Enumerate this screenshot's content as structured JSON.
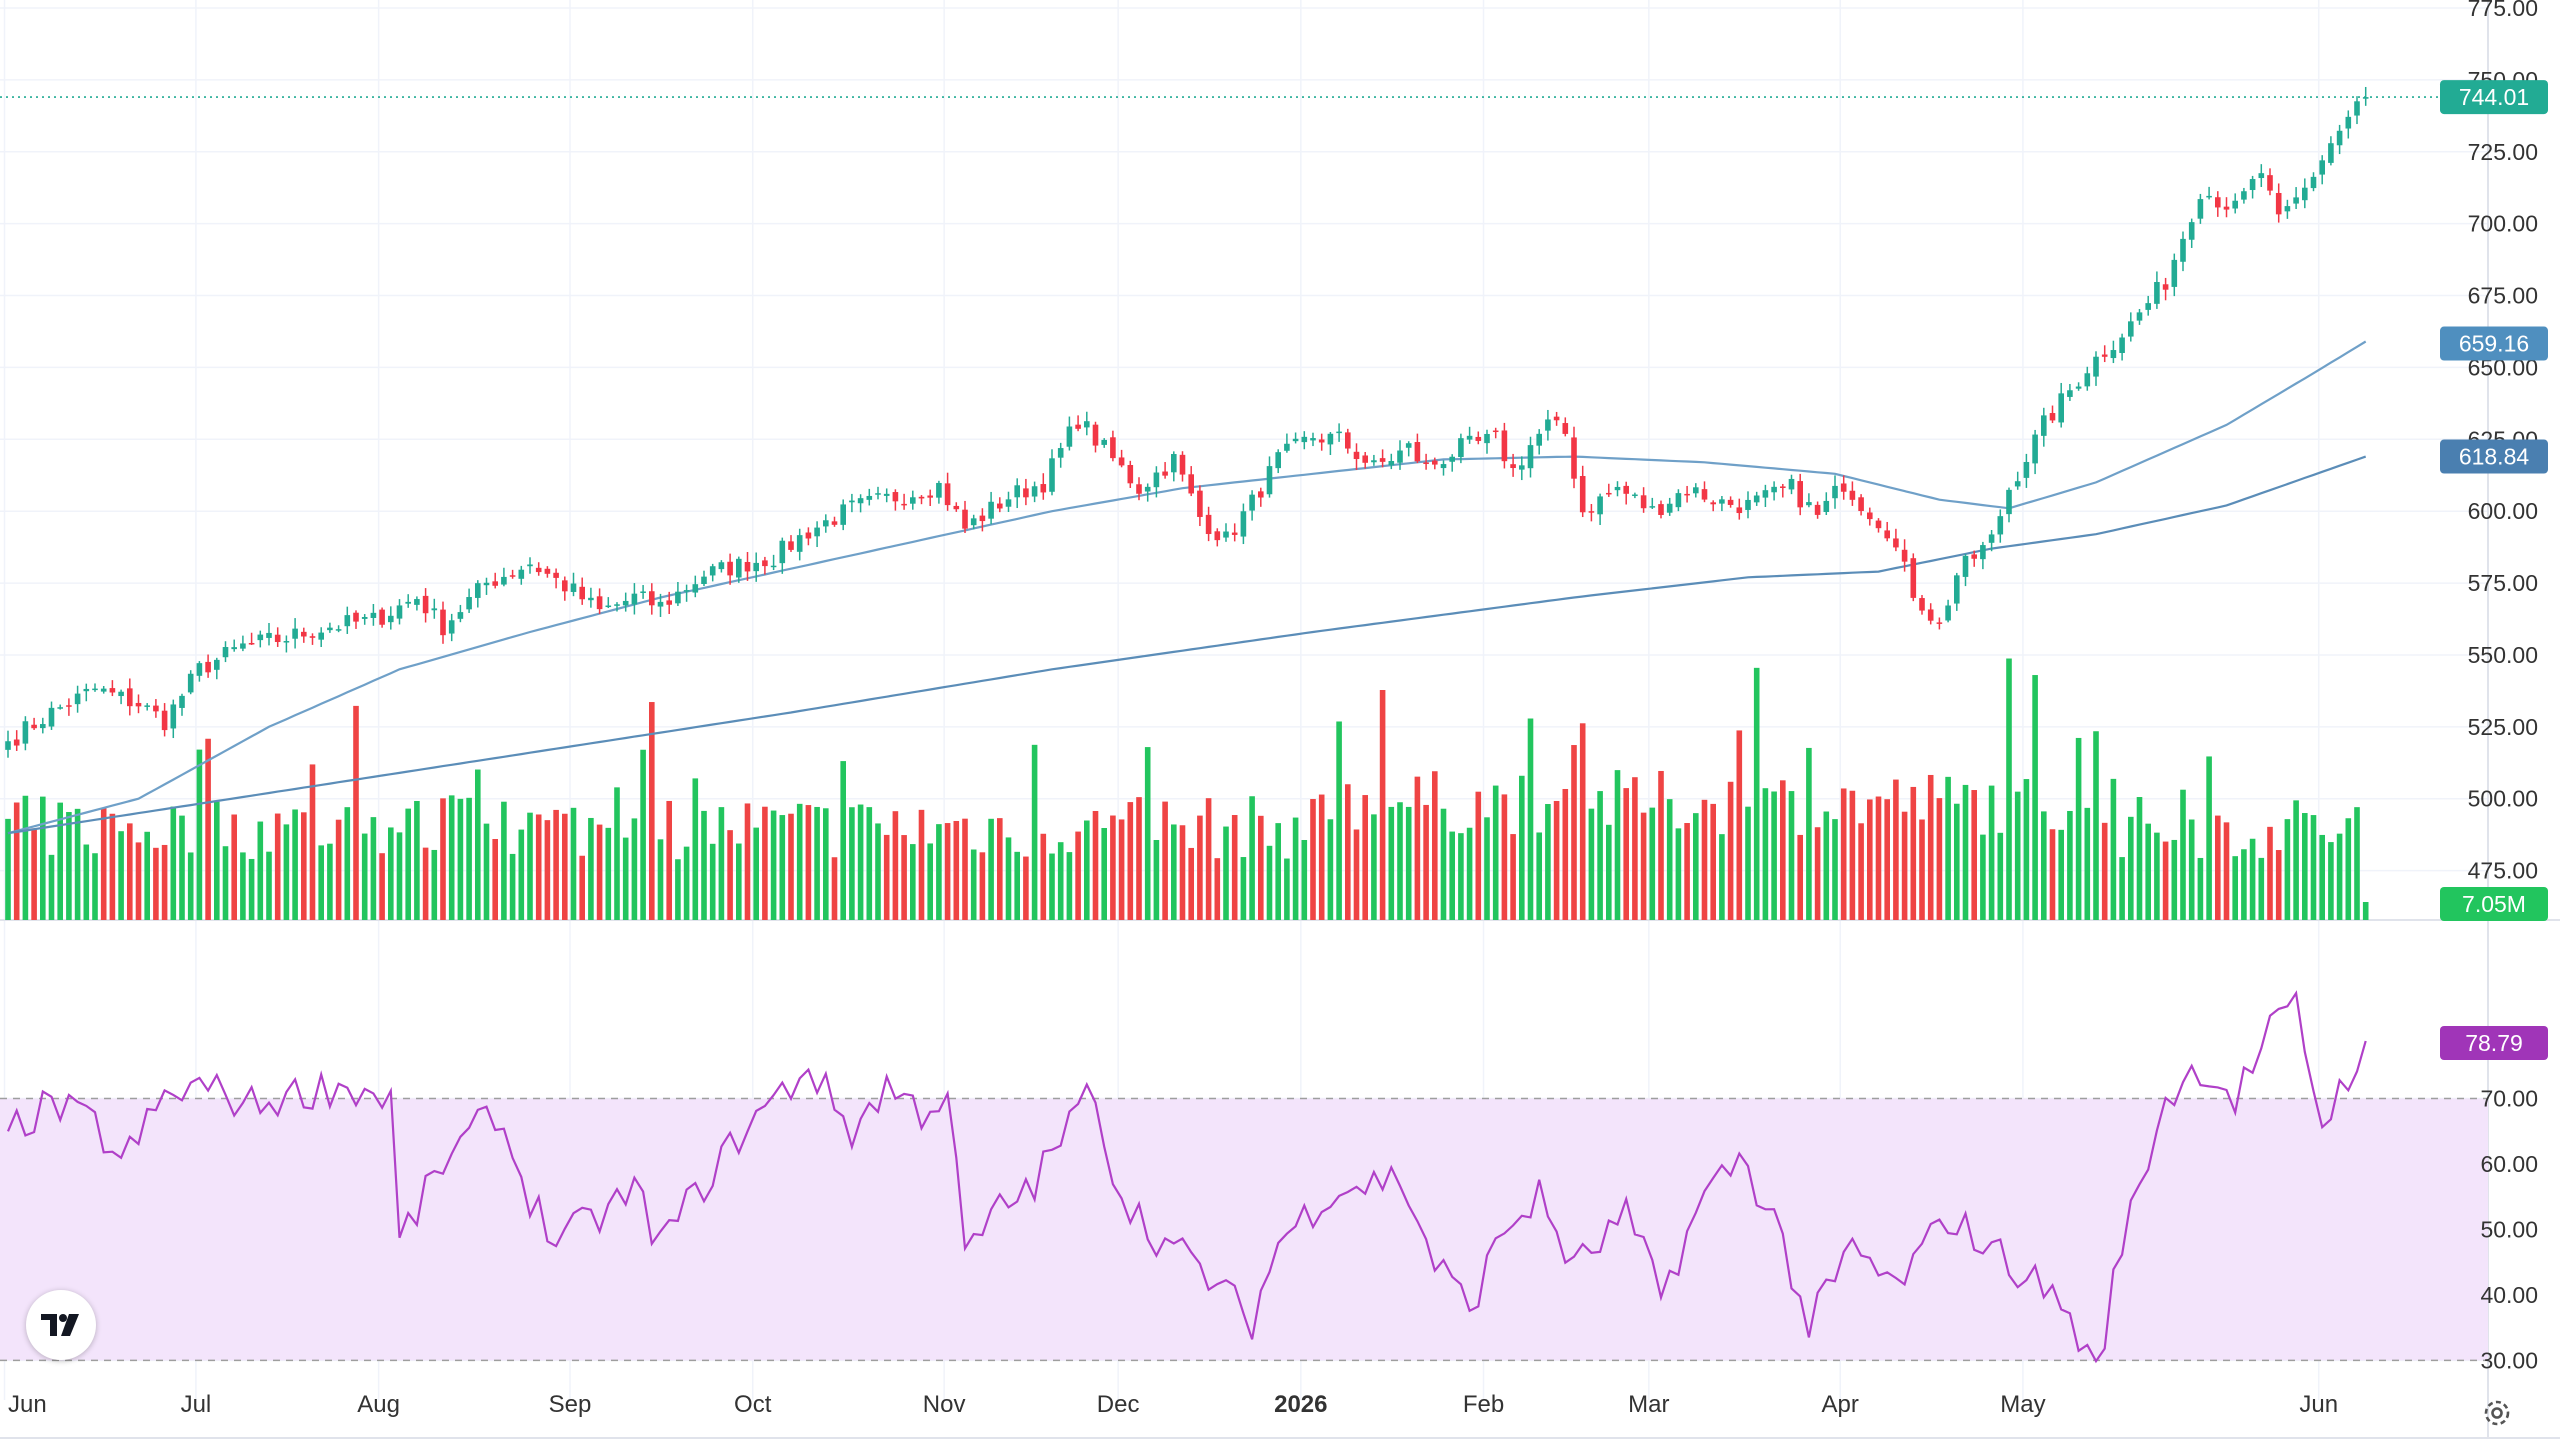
{
  "colors": {
    "up": "#22ab94",
    "down": "#f23645",
    "volume_up": "#22c55e",
    "volume_down": "#ef4444",
    "ma_fast": "#6fa0c8",
    "ma_slow": "#5b8db8",
    "rsi_line": "#b040c8",
    "rsi_band": "#f3e4fb",
    "grid": "#f0f3fa",
    "axis_text": "#333333"
  },
  "badges": {
    "last_price": "744.01",
    "ma_fast": "659.16",
    "ma_slow": "618.84",
    "volume": "7.05M",
    "rsi": "78.79"
  },
  "chart_data": [
    {
      "type": "candlestick",
      "price_axis_ticks": [
        "775.00",
        "750.00",
        "725.00",
        "700.00",
        "675.00",
        "650.00",
        "625.00",
        "600.00",
        "575.00",
        "550.00",
        "525.00",
        "500.00",
        "475.00"
      ],
      "ylim": [
        462,
        775
      ],
      "time_axis_labels": [
        "Jun",
        "Jul",
        "Aug",
        "Sep",
        "Oct",
        "Nov",
        "Dec",
        "2026",
        "Feb",
        "Mar",
        "Apr",
        "May",
        "Jun"
      ],
      "last_price": 744.01,
      "anchors": [
        [
          0,
          520
        ],
        [
          5,
          530
        ],
        [
          10,
          538
        ],
        [
          15,
          533
        ],
        [
          18,
          527
        ],
        [
          22,
          545
        ],
        [
          27,
          553
        ],
        [
          32,
          556
        ],
        [
          37,
          560
        ],
        [
          42,
          562
        ],
        [
          47,
          570
        ],
        [
          50,
          560
        ],
        [
          55,
          575
        ],
        [
          60,
          582
        ],
        [
          65,
          572
        ],
        [
          68,
          565
        ],
        [
          72,
          570
        ],
        [
          75,
          567
        ],
        [
          80,
          578
        ],
        [
          85,
          582
        ],
        [
          88,
          584
        ],
        [
          92,
          593
        ],
        [
          97,
          601
        ],
        [
          102,
          605
        ],
        [
          107,
          609
        ],
        [
          110,
          594
        ],
        [
          115,
          605
        ],
        [
          119,
          610
        ],
        [
          123,
          632
        ],
        [
          127,
          618
        ],
        [
          130,
          608
        ],
        [
          134,
          618
        ],
        [
          137,
          598
        ],
        [
          140,
          590
        ],
        [
          143,
          603
        ],
        [
          146,
          618
        ],
        [
          150,
          626
        ],
        [
          153,
          625
        ],
        [
          157,
          615
        ],
        [
          161,
          622
        ],
        [
          163,
          615
        ],
        [
          167,
          622
        ],
        [
          171,
          625
        ],
        [
          173,
          614
        ],
        [
          175,
          623
        ],
        [
          177,
          630
        ],
        [
          179,
          627
        ],
        [
          181,
          600
        ],
        [
          185,
          608
        ],
        [
          189,
          600
        ],
        [
          193,
          608
        ],
        [
          197,
          603
        ],
        [
          200,
          602
        ],
        [
          205,
          608
        ],
        [
          208,
          598
        ],
        [
          211,
          610
        ],
        [
          213,
          603
        ],
        [
          216,
          594
        ],
        [
          219,
          572
        ],
        [
          222,
          560
        ],
        [
          224,
          578
        ],
        [
          228,
          590
        ],
        [
          230,
          608
        ],
        [
          234,
          630
        ],
        [
          239,
          650
        ],
        [
          244,
          665
        ],
        [
          248,
          680
        ],
        [
          252,
          712
        ],
        [
          256,
          705
        ],
        [
          259,
          718
        ],
        [
          261,
          700
        ],
        [
          264,
          712
        ],
        [
          267,
          728
        ],
        [
          270,
          741
        ],
        [
          271,
          744
        ]
      ],
      "moving_average_fast": {
        "label": "659.16",
        "anchors": [
          [
            0,
            488
          ],
          [
            15,
            500
          ],
          [
            30,
            525
          ],
          [
            45,
            545
          ],
          [
            60,
            558
          ],
          [
            75,
            570
          ],
          [
            90,
            580
          ],
          [
            105,
            590
          ],
          [
            120,
            600
          ],
          [
            135,
            608
          ],
          [
            150,
            613
          ],
          [
            165,
            618
          ],
          [
            180,
            619
          ],
          [
            195,
            617
          ],
          [
            210,
            613
          ],
          [
            222,
            604
          ],
          [
            230,
            601
          ],
          [
            240,
            610
          ],
          [
            255,
            630
          ],
          [
            265,
            648
          ],
          [
            271,
            659
          ]
        ]
      },
      "moving_average_slow": {
        "label": "618.84",
        "anchors": [
          [
            0,
            488
          ],
          [
            30,
            502
          ],
          [
            60,
            516
          ],
          [
            90,
            530
          ],
          [
            120,
            545
          ],
          [
            150,
            558
          ],
          [
            180,
            570
          ],
          [
            200,
            577
          ],
          [
            215,
            579
          ],
          [
            228,
            587
          ],
          [
            240,
            592
          ],
          [
            255,
            602
          ],
          [
            271,
            619
          ]
        ]
      }
    },
    {
      "type": "bar",
      "name": "Volume",
      "last_value": "7.05M",
      "bar_count": 272,
      "colors_follow_candle_direction": true
    },
    {
      "type": "line",
      "name": "RSI",
      "ylim": [
        27,
        93
      ],
      "axis_ticks": [
        "70.00",
        "60.00",
        "50.00",
        "40.00",
        "30.00"
      ],
      "overbought": 70,
      "oversold": 30,
      "last_value": 78.79,
      "anchors": [
        [
          0,
          65
        ],
        [
          5,
          69
        ],
        [
          10,
          66
        ],
        [
          13,
          60
        ],
        [
          18,
          70
        ],
        [
          22,
          72
        ],
        [
          28,
          69
        ],
        [
          34,
          71
        ],
        [
          38,
          72
        ],
        [
          44,
          70
        ],
        [
          45,
          48
        ],
        [
          50,
          60
        ],
        [
          56,
          68
        ],
        [
          60,
          55
        ],
        [
          63,
          48
        ],
        [
          68,
          52
        ],
        [
          72,
          56
        ],
        [
          75,
          48
        ],
        [
          80,
          57
        ],
        [
          85,
          66
        ],
        [
          90,
          72
        ],
        [
          92,
          75
        ],
        [
          97,
          65
        ],
        [
          101,
          72
        ],
        [
          105,
          68
        ],
        [
          108,
          71
        ],
        [
          110,
          46
        ],
        [
          114,
          53
        ],
        [
          118,
          57
        ],
        [
          122,
          66
        ],
        [
          125,
          72
        ],
        [
          127,
          58
        ],
        [
          131,
          50
        ],
        [
          136,
          45
        ],
        [
          140,
          40
        ],
        [
          143,
          36
        ],
        [
          146,
          48
        ],
        [
          152,
          56
        ],
        [
          160,
          58
        ],
        [
          164,
          45
        ],
        [
          168,
          38
        ],
        [
          172,
          50
        ],
        [
          176,
          55
        ],
        [
          180,
          44
        ],
        [
          186,
          52
        ],
        [
          190,
          40
        ],
        [
          195,
          55
        ],
        [
          199,
          61
        ],
        [
          203,
          52
        ],
        [
          207,
          35
        ],
        [
          212,
          47
        ],
        [
          217,
          41
        ],
        [
          223,
          52
        ],
        [
          227,
          48
        ],
        [
          231,
          44
        ],
        [
          236,
          39
        ],
        [
          240,
          28
        ],
        [
          243,
          48
        ],
        [
          248,
          70
        ],
        [
          252,
          75
        ],
        [
          256,
          70
        ],
        [
          260,
          80
        ],
        [
          263,
          84
        ],
        [
          266,
          66
        ],
        [
          271,
          79
        ]
      ]
    }
  ]
}
